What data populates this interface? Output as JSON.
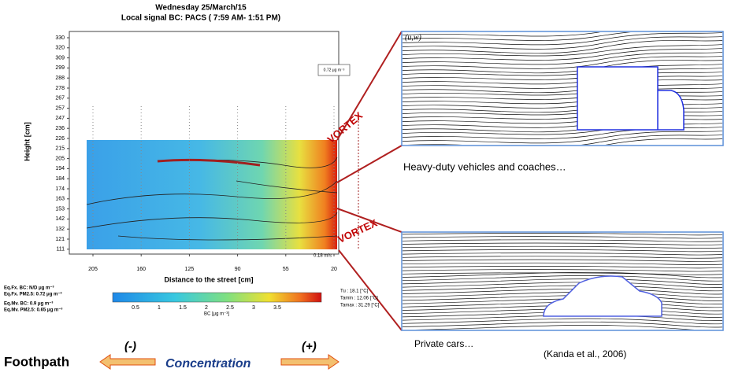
{
  "plot": {
    "title": "Wednesday 25/March/15",
    "subtitle": "Local signal BC: PACS ( 7:59 AM- 1:51 PM)",
    "y_label": "Height [cm]",
    "y_ticks": [
      "330",
      "320",
      "309",
      "299",
      "288",
      "278",
      "267",
      "257",
      "247",
      "236",
      "226",
      "215",
      "205",
      "194",
      "184",
      "174",
      "163",
      "153",
      "142",
      "132",
      "121",
      "111"
    ],
    "x_label": "Distance to the street [cm]",
    "x_ticks": [
      "205",
      "160",
      "125",
      "90",
      "55",
      "20"
    ],
    "box_label": "0.72 μg m⁻³",
    "wind_label": "0.18 m/s",
    "equivalents": [
      "Eq.Fx. BC: N/D μg m⁻³",
      "Eq.Fx. PM2.5: 0.72 μg m⁻³",
      "Eq.Mv. BC: 0.9 μg m⁻³",
      "Eq.Mv. PM2.5: 0.65 μg m⁻³"
    ],
    "colorbar_ticks": [
      "0.5",
      "1",
      "1.5",
      "2",
      "2.5",
      "3",
      "3.5"
    ],
    "colorbar_label": "BC [μg m⁻³]",
    "temperatures": [
      "Tu : 18.1 [°C]",
      "Tamin : 12.06 [°C]",
      "Tamax : 31.29 [°C]"
    ]
  },
  "vortex_labels": [
    "VORTEX",
    "VORTEX"
  ],
  "panels": {
    "axis_label": "(u,w)",
    "top_caption": "Heavy-duty vehicles and coaches…",
    "bottom_caption": "Private cars…",
    "source": "(Kanda et al., 2006)"
  },
  "footer": {
    "left": "Foothpath",
    "minus": "(-)",
    "middle": "Concentration",
    "plus": "(+)"
  }
}
